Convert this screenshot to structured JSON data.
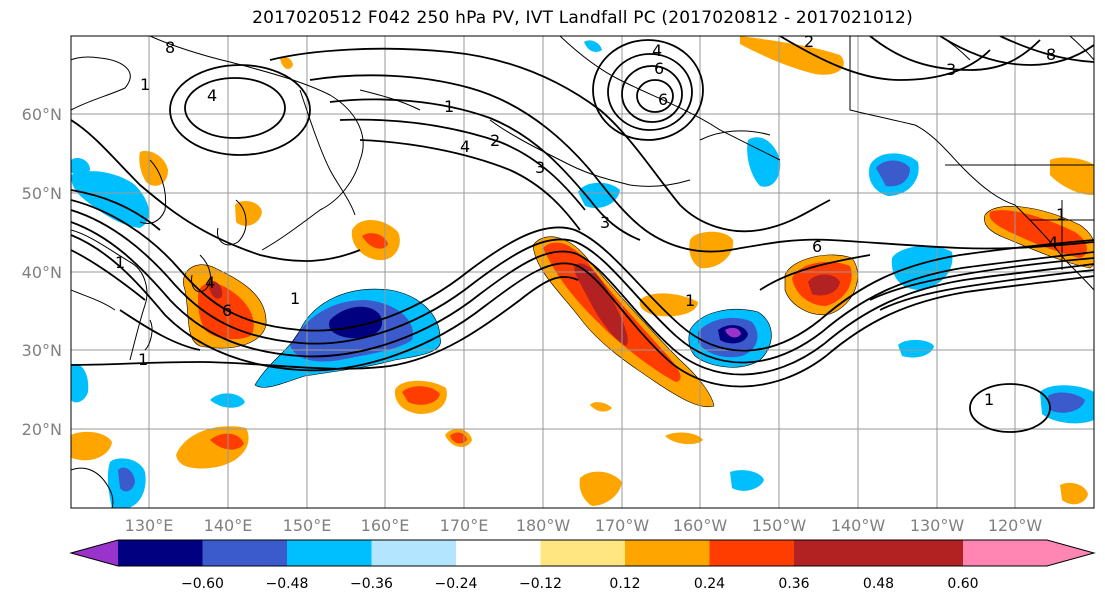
{
  "title": "2017020512 F042 250 hPa PV, IVT Landfall PC (2017020812 - 2017021012)",
  "lat_labels": [
    "60°N",
    "50°N",
    "40°N",
    "30°N",
    "20°N"
  ],
  "lon_labels": [
    "130°E",
    "140°E",
    "150°E",
    "160°E",
    "170°E",
    "180°W",
    "170°W",
    "160°W",
    "150°W",
    "140°W",
    "130°W",
    "120°W"
  ],
  "colorbar": {
    "ticks": [
      "−0.60",
      "−0.48",
      "−0.36",
      "−0.24",
      "−0.12",
      "0.12",
      "0.24",
      "0.36",
      "0.48",
      "0.60"
    ],
    "colors": [
      "#9933cc",
      "#000080",
      "#3b5bcc",
      "#00bfff",
      "#b3e5ff",
      "#ffffff",
      "#ffe680",
      "#ffa500",
      "#ff3d00",
      "#b22222",
      "#ff85b2"
    ]
  },
  "contour_labels": [
    "8",
    "4",
    "4",
    "6",
    "6",
    "1",
    "2",
    "4",
    "3",
    "3",
    "6",
    "1",
    "1",
    "1",
    "4",
    "6",
    "1",
    "1",
    "2",
    "8",
    "3",
    "4",
    "1",
    "1"
  ]
}
